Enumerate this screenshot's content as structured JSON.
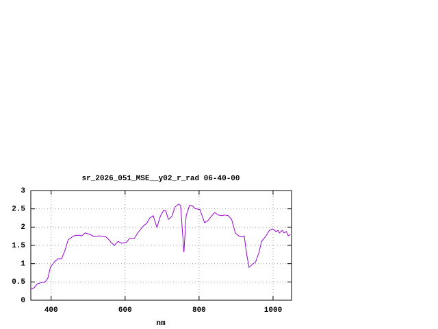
{
  "chart_data": {
    "type": "line",
    "title": "sr_2026_051_MSE__y02_r_rad 06-40-00",
    "x_label": "nm",
    "x": [
      345,
      354,
      363,
      376,
      383,
      391,
      398,
      409,
      418,
      428,
      437,
      446,
      461,
      474,
      483,
      492,
      505,
      516,
      529,
      547,
      553,
      562,
      571,
      581,
      590,
      603,
      612,
      625,
      634,
      649,
      658,
      667,
      676,
      686,
      695,
      704,
      710,
      717,
      726,
      735,
      745,
      750,
      756,
      759,
      765,
      774,
      781,
      789,
      802,
      815,
      824,
      833,
      842,
      852,
      861,
      870,
      879,
      888,
      898,
      907,
      916,
      922,
      929,
      935,
      944,
      953,
      962,
      969,
      981,
      990,
      999,
      1008,
      1014,
      1017,
      1025,
      1030,
      1036,
      1041,
      1047
    ],
    "series": [
      {
        "color": "#9400d3",
        "values": [
          0.3,
          0.34,
          0.45,
          0.49,
          0.49,
          0.6,
          0.9,
          1.05,
          1.13,
          1.13,
          1.35,
          1.65,
          1.76,
          1.78,
          1.76,
          1.84,
          1.8,
          1.74,
          1.76,
          1.74,
          1.69,
          1.58,
          1.5,
          1.61,
          1.56,
          1.58,
          1.69,
          1.69,
          1.84,
          2.03,
          2.1,
          2.25,
          2.31,
          1.99,
          2.29,
          2.46,
          2.44,
          2.21,
          2.29,
          2.55,
          2.63,
          2.59,
          1.74,
          1.31,
          2.31,
          2.59,
          2.59,
          2.51,
          2.48,
          2.12,
          2.18,
          2.29,
          2.4,
          2.33,
          2.31,
          2.33,
          2.31,
          2.21,
          1.84,
          1.76,
          1.73,
          1.76,
          1.24,
          0.9,
          0.98,
          1.05,
          1.31,
          1.61,
          1.76,
          1.91,
          1.95,
          1.88,
          1.91,
          1.84,
          1.91,
          1.84,
          1.88,
          1.76,
          1.8
        ]
      }
    ],
    "xlim": [
      345,
      1050
    ],
    "xticks": [
      400,
      600,
      800,
      1000
    ],
    "ylim": [
      0,
      3
    ],
    "yticks": [
      0,
      0.5,
      1,
      1.5,
      2,
      2.5,
      3
    ],
    "grid": true
  }
}
